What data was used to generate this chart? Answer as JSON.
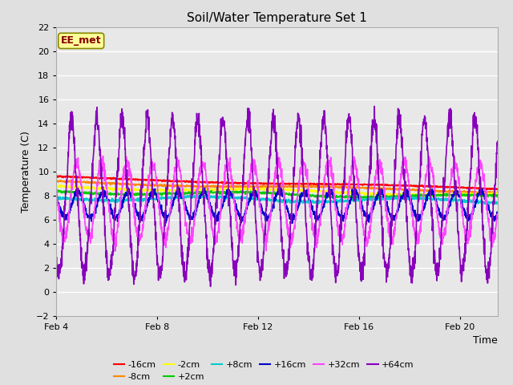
{
  "title": "Soil/Water Temperature Set 1",
  "xlabel": "Time",
  "ylabel": "Temperature (C)",
  "ylim": [
    -2,
    22
  ],
  "yticks": [
    -2,
    0,
    2,
    4,
    6,
    8,
    10,
    12,
    14,
    16,
    18,
    20,
    22
  ],
  "xlim_days": [
    4,
    21.5
  ],
  "xtick_labels": [
    "Feb 4",
    "Feb 8",
    "Feb 12",
    "Feb 16",
    "Feb 20"
  ],
  "xtick_positions": [
    4,
    8,
    12,
    16,
    20
  ],
  "background_color": "#e0e0e0",
  "plot_bg_color": "#e8e8e8",
  "grid_color": "#ffffff",
  "annotation_text": "EE_met",
  "annotation_bg": "#ffff99",
  "annotation_border": "#888800",
  "annotation_text_color": "#880000",
  "series_order": [
    "-16cm",
    "-8cm",
    "-2cm",
    "+2cm",
    "+8cm",
    "+16cm",
    "+32cm",
    "+64cm"
  ],
  "series": {
    "-16cm": {
      "color": "#ff0000",
      "lw": 1.2
    },
    "-8cm": {
      "color": "#ff8800",
      "lw": 1.2
    },
    "-2cm": {
      "color": "#ffff00",
      "lw": 1.2
    },
    "+2cm": {
      "color": "#00cc00",
      "lw": 1.2
    },
    "+8cm": {
      "color": "#00cccc",
      "lw": 1.2
    },
    "+16cm": {
      "color": "#0000cc",
      "lw": 1.2
    },
    "+32cm": {
      "color": "#ff44ff",
      "lw": 1.2
    },
    "+64cm": {
      "color": "#8800bb",
      "lw": 1.2
    }
  },
  "legend_row1": [
    "-16cm",
    "-8cm",
    "-2cm",
    "+2cm",
    "+8cm",
    "+16cm"
  ],
  "legend_row2": [
    "+32cm",
    "+64cm"
  ]
}
